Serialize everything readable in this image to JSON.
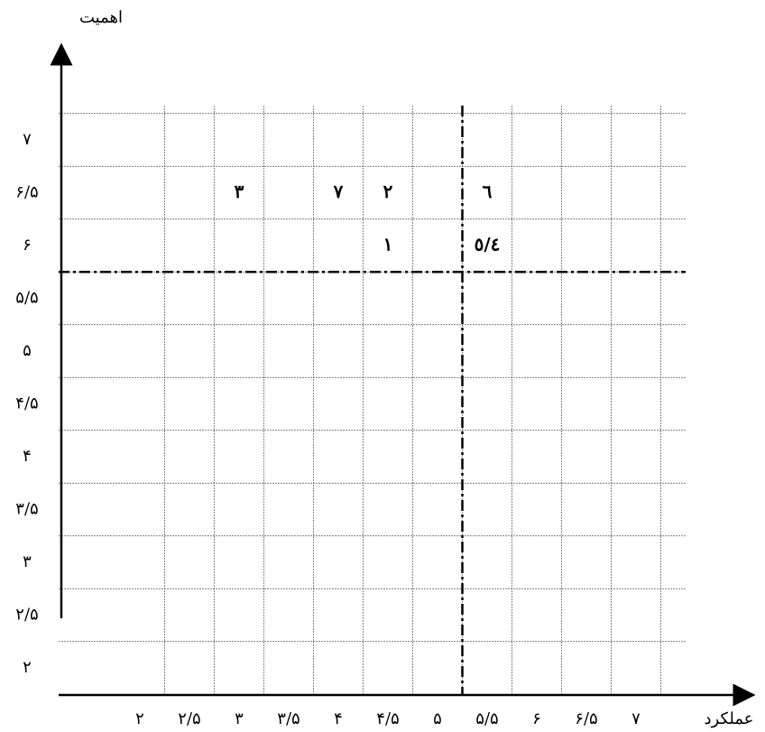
{
  "chart_data": {
    "type": "scatter",
    "x_label": "عملکرد",
    "y_label": "اهمیت",
    "xlim": [
      2,
      7
    ],
    "ylim": [
      2,
      7
    ],
    "xticks": [
      {
        "value": 2,
        "label": "۲"
      },
      {
        "value": 2.5,
        "label": "۲/۵"
      },
      {
        "value": 3,
        "label": "۳"
      },
      {
        "value": 3.5,
        "label": "۳/۵"
      },
      {
        "value": 4,
        "label": "۴"
      },
      {
        "value": 4.5,
        "label": "۴/۵"
      },
      {
        "value": 5,
        "label": "۵"
      },
      {
        "value": 5.5,
        "label": "۵/۵"
      },
      {
        "value": 6,
        "label": "۶"
      },
      {
        "value": 6.5,
        "label": "۶/۵"
      },
      {
        "value": 7,
        "label": "۷"
      }
    ],
    "yticks": [
      {
        "value": 2,
        "label": "۲"
      },
      {
        "value": 2.5,
        "label": "۲/۵"
      },
      {
        "value": 3,
        "label": "۳"
      },
      {
        "value": 3.5,
        "label": "۳/۵"
      },
      {
        "value": 4,
        "label": "۴"
      },
      {
        "value": 4.5,
        "label": "۴/۵"
      },
      {
        "value": 5,
        "label": "۵"
      },
      {
        "value": 5.5,
        "label": "۵/۵"
      },
      {
        "value": 6,
        "label": "۶"
      },
      {
        "value": 6.5,
        "label": "۶/۵"
      },
      {
        "value": 7,
        "label": "۷"
      }
    ],
    "points": [
      {
        "label": "۳",
        "x": 3,
        "y": 6.5
      },
      {
        "label": "۷",
        "x": 4,
        "y": 6.5
      },
      {
        "label": "۲",
        "x": 4.5,
        "y": 6.5
      },
      {
        "label": "٦",
        "x": 5.5,
        "y": 6.5
      },
      {
        "label": "۱",
        "x": 4.5,
        "y": 6
      },
      {
        "label": "٥/٤",
        "x": 5.5,
        "y": 6
      }
    ],
    "reference_lines": {
      "x": 5.25,
      "y": 5.75
    },
    "grid": true
  }
}
